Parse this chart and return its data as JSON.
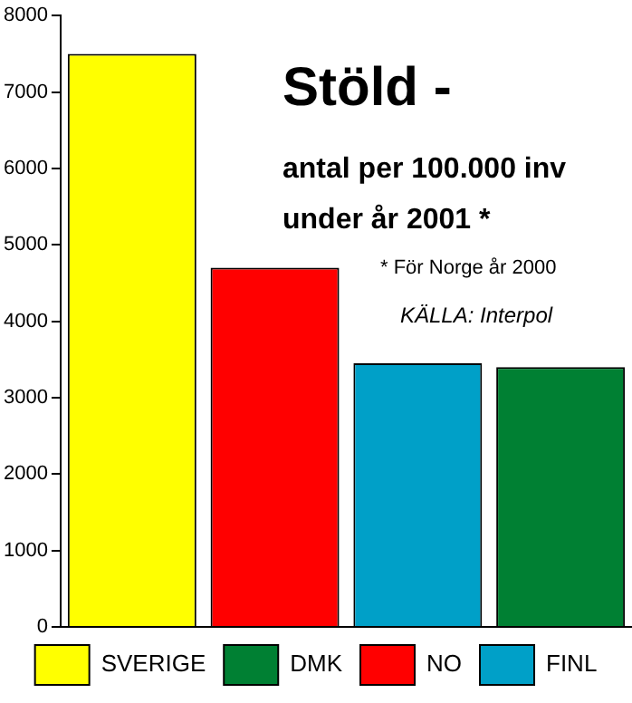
{
  "chart_data": {
    "type": "bar",
    "title": "Stöld -",
    "subtitle": "antal per 100.000 inv under år 2001 *",
    "annotations": [
      "* För Norge  år 2000",
      "KÄLLA: Interpol"
    ],
    "categories": [
      null,
      null,
      null,
      null
    ],
    "series": [
      {
        "name": "SVERIGE",
        "color": "#ffff00",
        "values": [
          7500,
          null,
          null,
          null
        ]
      },
      {
        "name": "DMK",
        "color": "#008033",
        "values": [
          null,
          null,
          null,
          3400
        ]
      },
      {
        "name": "NO",
        "color": "#ff0000",
        "values": [
          null,
          4700,
          null,
          null
        ]
      },
      {
        "name": "FINL",
        "color": "#00a0c8",
        "values": [
          null,
          null,
          3450,
          null
        ]
      }
    ],
    "ylim": [
      0,
      8000
    ],
    "yticks": [
      0,
      1000,
      2000,
      3000,
      4000,
      5000,
      6000,
      7000,
      8000
    ],
    "grid": false,
    "legend": "bottom"
  }
}
